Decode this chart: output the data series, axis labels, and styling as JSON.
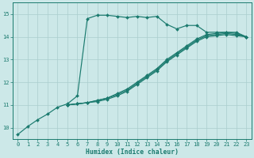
{
  "xlabel": "Humidex (Indice chaleur)",
  "bg_color": "#cce8e8",
  "grid_color": "#aacece",
  "line_color": "#1a7a6e",
  "xlim_min": -0.5,
  "xlim_max": 23.5,
  "ylim_min": 9.5,
  "ylim_max": 15.5,
  "yticks": [
    10,
    11,
    12,
    13,
    14,
    15
  ],
  "xticks": [
    0,
    1,
    2,
    3,
    4,
    5,
    6,
    7,
    8,
    9,
    10,
    11,
    12,
    13,
    14,
    15,
    16,
    17,
    18,
    19,
    20,
    21,
    22,
    23
  ],
  "lines": [
    {
      "x": [
        0,
        1,
        2,
        3,
        4,
        5,
        6,
        7,
        8,
        9,
        10,
        11,
        12,
        13,
        14,
        15,
        16,
        17,
        18,
        19,
        20,
        21,
        22,
        23
      ],
      "y": [
        9.7,
        10.05,
        10.35,
        10.6,
        10.9,
        11.05,
        11.4,
        14.8,
        14.95,
        14.95,
        14.9,
        14.85,
        14.9,
        14.85,
        14.9,
        14.55,
        14.35,
        14.5,
        14.5,
        14.2,
        14.2,
        14.2,
        14.2,
        14.0
      ]
    },
    {
      "x": [
        5,
        6,
        7,
        8,
        9,
        10,
        11,
        12,
        13,
        14,
        15,
        16,
        17,
        18,
        19,
        20,
        21,
        22,
        23
      ],
      "y": [
        11.0,
        11.05,
        11.1,
        11.2,
        11.3,
        11.5,
        11.7,
        12.0,
        12.3,
        12.6,
        13.0,
        13.3,
        13.6,
        13.9,
        14.1,
        14.15,
        14.2,
        14.15,
        14.0
      ]
    },
    {
      "x": [
        5,
        6,
        7,
        8,
        9,
        10,
        11,
        12,
        13,
        14,
        15,
        16,
        17,
        18,
        19,
        20,
        21,
        22,
        23
      ],
      "y": [
        11.0,
        11.05,
        11.1,
        11.2,
        11.3,
        11.45,
        11.65,
        11.95,
        12.25,
        12.55,
        12.95,
        13.25,
        13.55,
        13.85,
        14.05,
        14.1,
        14.15,
        14.1,
        14.0
      ]
    },
    {
      "x": [
        5,
        6,
        7,
        8,
        9,
        10,
        11,
        12,
        13,
        14,
        15,
        16,
        17,
        18,
        19,
        20,
        21,
        22,
        23
      ],
      "y": [
        11.0,
        11.05,
        11.1,
        11.15,
        11.25,
        11.4,
        11.6,
        11.9,
        12.2,
        12.5,
        12.9,
        13.2,
        13.5,
        13.8,
        14.0,
        14.05,
        14.1,
        14.05,
        14.0
      ]
    }
  ]
}
